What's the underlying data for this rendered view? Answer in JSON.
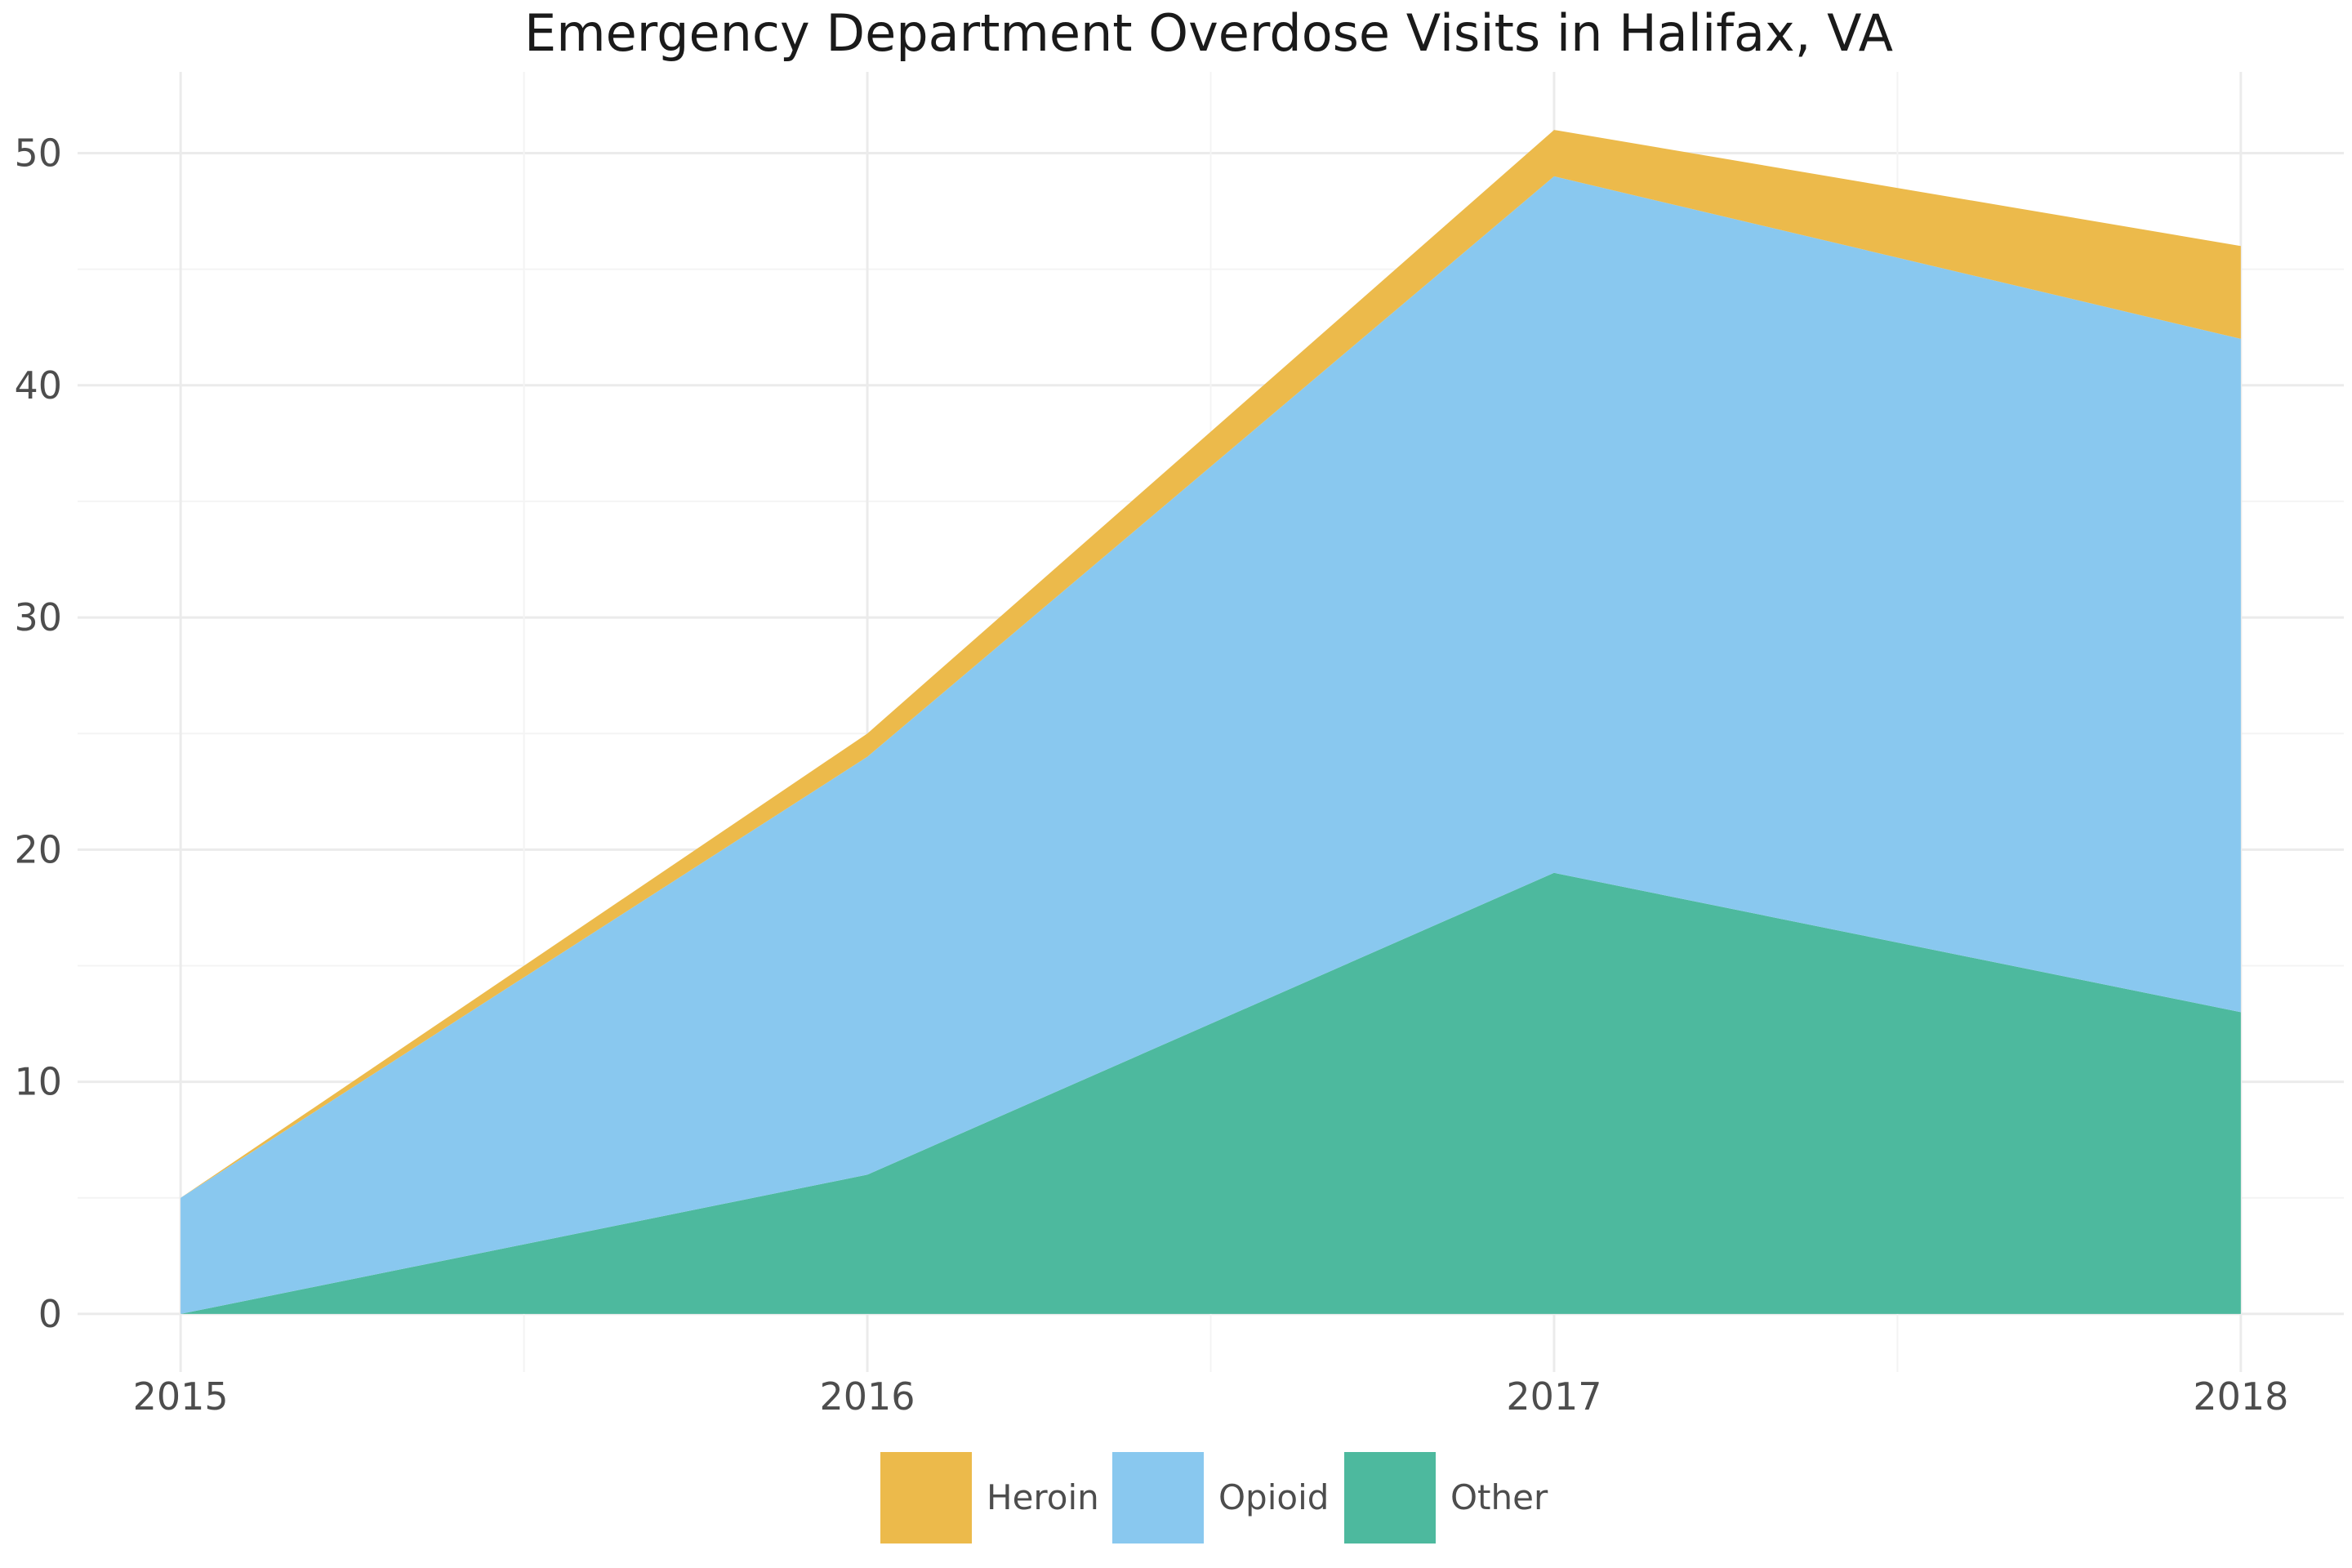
{
  "chart_data": {
    "type": "area",
    "stacked": true,
    "title": "Emergency Department Overdose Visits in Halifax, VA",
    "xlabel": "",
    "ylabel": "",
    "x": [
      2015,
      2016,
      2017,
      2018
    ],
    "x_tick_labels": [
      "2015",
      "2016",
      "2017",
      "2018"
    ],
    "xlim": [
      2014.85,
      2018.15
    ],
    "ylim": [
      -2.5,
      53.5
    ],
    "y_ticks": [
      0,
      10,
      20,
      30,
      40,
      50
    ],
    "y_tick_labels": [
      "0",
      "10",
      "20",
      "30",
      "40",
      "50"
    ],
    "grid": true,
    "legend_position": "bottom",
    "series": [
      {
        "name": "Other",
        "values": [
          0,
          6,
          19,
          13
        ],
        "color": "#4DB99E"
      },
      {
        "name": "Opioid",
        "values": [
          5,
          18,
          30,
          29
        ],
        "color": "#89C8EF"
      },
      {
        "name": "Heroin",
        "values": [
          0,
          1,
          2,
          4
        ],
        "color": "#ECBA4B"
      }
    ],
    "legend_order": [
      "Heroin",
      "Opioid",
      "Other"
    ]
  }
}
